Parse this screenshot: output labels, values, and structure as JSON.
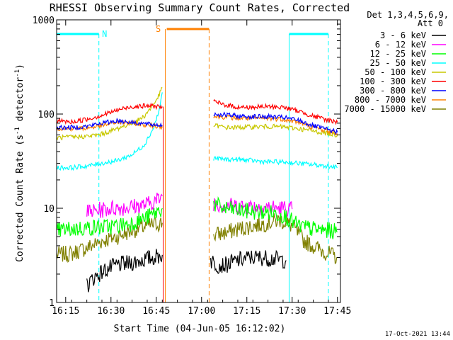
{
  "chart_data": {
    "type": "line",
    "title": "RHESSI Observing Summary Count Rates, Corrected",
    "xlabel": "Start Time (04-Jun-05 16:12:02)",
    "ylabel_main": "Corrected Count Rate (s",
    "ylabel_sup1": "-1",
    "ylabel_mid": " detector",
    "ylabel_sup2": "-1",
    "ylabel_end": ")",
    "yscale": "log",
    "ylim": [
      1,
      1000
    ],
    "xlim_min": [
      0,
      94
    ],
    "x_ticks": [
      {
        "label": "16:15",
        "min": 3
      },
      {
        "label": "16:30",
        "min": 18
      },
      {
        "label": "16:45",
        "min": 33
      },
      {
        "label": "17:00",
        "min": 48
      },
      {
        "label": "17:15",
        "min": 63
      },
      {
        "label": "17:30",
        "min": 78
      },
      {
        "label": "17:45",
        "min": 93
      }
    ],
    "y_ticks": [
      {
        "label": "1",
        "value": 1
      },
      {
        "label": "10",
        "value": 10
      },
      {
        "label": "100",
        "value": 100
      },
      {
        "label": "1000",
        "value": 1000
      }
    ],
    "legend_header": [
      "Det 1,3,4,5,6,9,",
      "Att 0"
    ],
    "legend_position": "top-right outside",
    "series": [
      {
        "name": "3 - 6 keV",
        "color": "#000000",
        "points": [
          [
            10,
            1.5
          ],
          [
            12,
            1.8
          ],
          [
            14,
            2.0
          ],
          [
            16,
            2.2
          ],
          [
            20,
            2.5
          ],
          [
            24,
            2.6
          ],
          [
            28,
            2.8
          ],
          [
            32,
            3.0
          ],
          [
            35,
            3.2
          ],
          [
            51,
            2.8
          ],
          [
            53,
            2.5
          ],
          [
            56,
            2.5
          ],
          [
            60,
            2.8
          ],
          [
            64,
            3.0
          ],
          [
            68,
            3.0
          ],
          [
            72,
            2.9
          ],
          [
            76,
            2.8
          ]
        ]
      },
      {
        "name": "6 - 12 keV",
        "color": "#ff00ff",
        "points": [
          [
            10,
            9.0
          ],
          [
            14,
            9.5
          ],
          [
            18,
            10.0
          ],
          [
            22,
            10.2
          ],
          [
            26,
            10.5
          ],
          [
            30,
            11.0
          ],
          [
            34,
            12.5
          ],
          [
            35,
            13.5
          ],
          [
            52,
            11.5
          ],
          [
            55,
            10.8
          ],
          [
            60,
            10.5
          ],
          [
            65,
            10.5
          ],
          [
            70,
            10.2
          ],
          [
            75,
            10.0
          ],
          [
            78,
            9.8
          ]
        ]
      },
      {
        "name": "12 - 25 keV",
        "color": "#00ff00",
        "points": [
          [
            0,
            5.8
          ],
          [
            5,
            6.0
          ],
          [
            10,
            6.2
          ],
          [
            15,
            6.3
          ],
          [
            20,
            6.5
          ],
          [
            25,
            7.0
          ],
          [
            30,
            8.0
          ],
          [
            33,
            9.0
          ],
          [
            35,
            10.0
          ],
          [
            52,
            11.0
          ],
          [
            55,
            10.0
          ],
          [
            60,
            9.5
          ],
          [
            65,
            9.2
          ],
          [
            70,
            9.0
          ],
          [
            75,
            8.5
          ],
          [
            80,
            6.5
          ],
          [
            85,
            6.0
          ],
          [
            90,
            5.8
          ],
          [
            93,
            5.6
          ]
        ]
      },
      {
        "name": "25 - 50 keV",
        "color": "#00ffff",
        "points": [
          [
            0,
            27
          ],
          [
            5,
            27
          ],
          [
            10,
            28
          ],
          [
            15,
            30
          ],
          [
            20,
            32
          ],
          [
            25,
            37
          ],
          [
            29,
            47
          ],
          [
            32,
            70
          ],
          [
            34,
            110
          ],
          [
            35,
            170
          ],
          [
            52,
            34
          ],
          [
            56,
            33
          ],
          [
            60,
            33
          ],
          [
            65,
            32
          ],
          [
            70,
            31
          ],
          [
            75,
            31
          ],
          [
            80,
            30
          ],
          [
            85,
            29
          ],
          [
            90,
            28
          ],
          [
            93,
            27
          ]
        ]
      },
      {
        "name": "50 - 100 keV",
        "color": "#c8c800",
        "points": [
          [
            0,
            56
          ],
          [
            5,
            57
          ],
          [
            10,
            58
          ],
          [
            14,
            60
          ],
          [
            18,
            66
          ],
          [
            22,
            74
          ],
          [
            26,
            82
          ],
          [
            29,
            95
          ],
          [
            32,
            125
          ],
          [
            34,
            160
          ],
          [
            35,
            190
          ],
          [
            52,
            76
          ],
          [
            56,
            72
          ],
          [
            60,
            72
          ],
          [
            65,
            73
          ],
          [
            70,
            74
          ],
          [
            75,
            73
          ],
          [
            80,
            70
          ],
          [
            85,
            66
          ],
          [
            90,
            62
          ],
          [
            93,
            60
          ]
        ]
      },
      {
        "name": "100 - 300 keV",
        "color": "#ff0000",
        "points": [
          [
            0,
            85
          ],
          [
            5,
            82
          ],
          [
            10,
            88
          ],
          [
            15,
            97
          ],
          [
            20,
            110
          ],
          [
            25,
            120
          ],
          [
            30,
            122
          ],
          [
            35,
            120
          ],
          [
            52,
            135
          ],
          [
            56,
            125
          ],
          [
            60,
            118
          ],
          [
            65,
            118
          ],
          [
            70,
            120
          ],
          [
            75,
            118
          ],
          [
            80,
            108
          ],
          [
            85,
            95
          ],
          [
            90,
            86
          ],
          [
            93,
            82
          ]
        ]
      },
      {
        "name": "300 - 800 keV",
        "color": "#0000ff",
        "points": [
          [
            0,
            72
          ],
          [
            5,
            72
          ],
          [
            10,
            74
          ],
          [
            15,
            80
          ],
          [
            20,
            85
          ],
          [
            25,
            82
          ],
          [
            30,
            78
          ],
          [
            35,
            76
          ],
          [
            52,
            100
          ],
          [
            56,
            98
          ],
          [
            60,
            95
          ],
          [
            65,
            94
          ],
          [
            70,
            94
          ],
          [
            75,
            92
          ],
          [
            80,
            86
          ],
          [
            85,
            75
          ],
          [
            90,
            68
          ],
          [
            93,
            64
          ]
        ]
      },
      {
        "name": "800 - 7000 keV",
        "color": "#ff8000",
        "points": [
          [
            0,
            70
          ],
          [
            5,
            70
          ],
          [
            10,
            71
          ],
          [
            15,
            75
          ],
          [
            20,
            82
          ],
          [
            25,
            80
          ],
          [
            30,
            76
          ],
          [
            35,
            74
          ],
          [
            52,
            94
          ],
          [
            56,
            93
          ],
          [
            60,
            90
          ],
          [
            65,
            90
          ],
          [
            70,
            90
          ],
          [
            75,
            88
          ],
          [
            80,
            82
          ],
          [
            85,
            72
          ],
          [
            90,
            66
          ],
          [
            93,
            62
          ]
        ]
      },
      {
        "name": "7000 - 15000 keV",
        "color": "#808000",
        "points": [
          [
            0,
            3.2
          ],
          [
            5,
            3.3
          ],
          [
            10,
            3.8
          ],
          [
            15,
            4.5
          ],
          [
            20,
            5.0
          ],
          [
            25,
            5.8
          ],
          [
            30,
            6.5
          ],
          [
            35,
            7.0
          ],
          [
            52,
            5.2
          ],
          [
            56,
            5.5
          ],
          [
            60,
            6.0
          ],
          [
            65,
            6.5
          ],
          [
            70,
            7.0
          ],
          [
            74,
            7.5
          ],
          [
            78,
            6.5
          ],
          [
            82,
            4.5
          ],
          [
            86,
            3.8
          ],
          [
            90,
            3.3
          ],
          [
            93,
            3.0
          ]
        ]
      }
    ],
    "night_markers": [
      {
        "label": "N",
        "start_min": 0,
        "end_min": 14,
        "color": "#00ffff"
      },
      {
        "label": "",
        "start_min": 77,
        "end_min": 90,
        "color": "#00ffff"
      }
    ],
    "saa_marker": {
      "label": "S",
      "start_min": 36,
      "end_min": 50.5,
      "color": "#ff8000"
    },
    "annotation_date": "17-Oct-2021 13:44"
  }
}
